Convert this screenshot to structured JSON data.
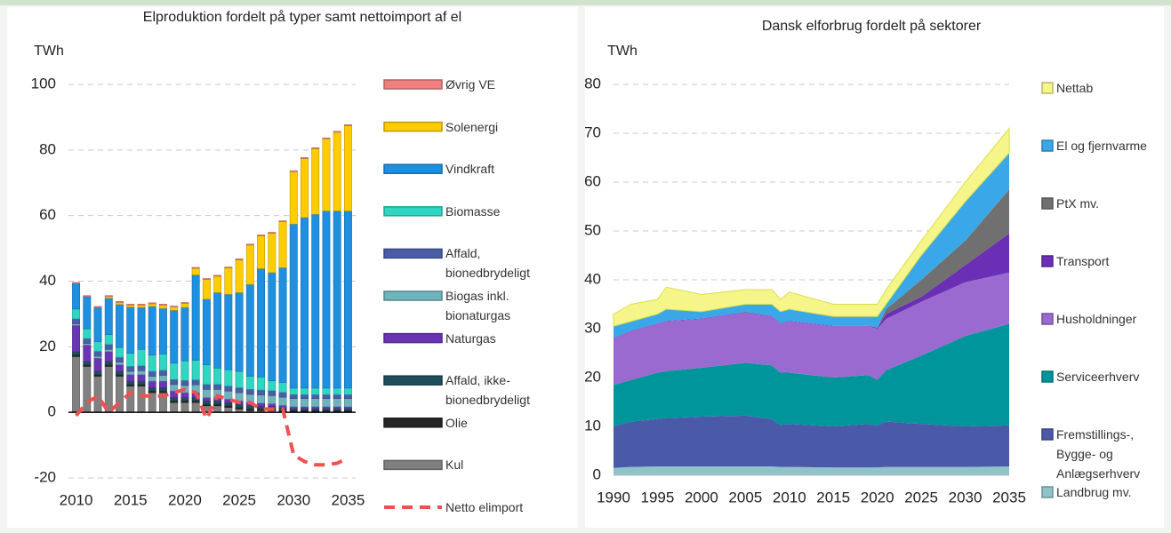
{
  "chart_data": [
    {
      "type": "bar",
      "title": "Elproduktion fordelt på typer samt nettoimport af el",
      "y_label": "TWh",
      "x": [
        2010,
        2011,
        2012,
        2013,
        2014,
        2015,
        2016,
        2017,
        2018,
        2019,
        2020,
        2021,
        2022,
        2023,
        2024,
        2025,
        2026,
        2027,
        2028,
        2029,
        2030,
        2031,
        2032,
        2033,
        2034,
        2035
      ],
      "xlim": [
        2009.3,
        2035.7
      ],
      "xticks": [
        2010,
        2015,
        2020,
        2025,
        2030,
        2035
      ],
      "ylim": [
        -20,
        100
      ],
      "yticks": [
        -20,
        0,
        20,
        40,
        60,
        80,
        100
      ],
      "grid": true,
      "series": [
        {
          "name": "Kul",
          "color": "#808080",
          "values": [
            17,
            14,
            11,
            14,
            11,
            8,
            8,
            6,
            6,
            3,
            3,
            3,
            2,
            2,
            1.5,
            1,
            0.5,
            0.5,
            0.5,
            0,
            0,
            0,
            0,
            0,
            0,
            0
          ]
        },
        {
          "name": "Olie",
          "color": "#262626",
          "values": [
            0.5,
            0.5,
            0.5,
            0.5,
            0.5,
            0.5,
            0.5,
            0.5,
            0.5,
            0.5,
            0.5,
            0.5,
            0.5,
            0.5,
            0.5,
            0.5,
            0.5,
            0.5,
            0.5,
            0.5,
            0.5,
            0.5,
            0.5,
            0.5,
            0.5,
            0.5
          ]
        },
        {
          "name": "Affald, ikke-bionedbrydeligt",
          "color": "#1f4e5a",
          "values": [
            1,
            1,
            1,
            1,
            1,
            1,
            1,
            1,
            1,
            1,
            1,
            1,
            1,
            1,
            1,
            1,
            1,
            0.8,
            0.8,
            0.8,
            0.6,
            0.6,
            0.6,
            0.6,
            0.6,
            0.6
          ]
        },
        {
          "name": "Naturgas",
          "color": "#6a35b5",
          "values": [
            8,
            5,
            4,
            3,
            2,
            2,
            2,
            2,
            2,
            2,
            1.5,
            1.5,
            1,
            1,
            1,
            1,
            1,
            1,
            0.8,
            0.8,
            0.6,
            0.6,
            0.6,
            0.6,
            0.6,
            0.6
          ]
        },
        {
          "name": "Biogas inkl. bionaturgas",
          "color": "#6fb3bd",
          "values": [
            0.5,
            0.5,
            0.6,
            0.7,
            0.8,
            1,
            1.2,
            1.5,
            1.8,
            2,
            2.2,
            2.4,
            2.5,
            2.5,
            2.5,
            2.5,
            2.5,
            2.5,
            2.5,
            2.5,
            2.5,
            2.5,
            2.5,
            2.5,
            2.5,
            2.5
          ]
        },
        {
          "name": "Affald, bionedbrydeligt",
          "color": "#4a5ea8",
          "values": [
            1.5,
            1.5,
            1.5,
            1.5,
            1.5,
            1.5,
            1.5,
            1.5,
            1.5,
            1.5,
            1.5,
            1.5,
            1.5,
            1.5,
            1.5,
            1.5,
            1.5,
            1.5,
            1.5,
            1.5,
            1.2,
            1.2,
            1.2,
            1.2,
            1.2,
            1.2
          ]
        },
        {
          "name": "Biomasse",
          "color": "#2fd6c2",
          "values": [
            3,
            3,
            3,
            3,
            3,
            4,
            5,
            5,
            5,
            5,
            6,
            6,
            6,
            5,
            5,
            5,
            4,
            4,
            3,
            3,
            2,
            2,
            2,
            2,
            2,
            2
          ]
        },
        {
          "name": "Vindkraft",
          "color": "#1f8fe0",
          "values": [
            7.8,
            9.8,
            10.3,
            11.1,
            13.1,
            14.1,
            12.8,
            14.8,
            13.9,
            16.1,
            16.3,
            26,
            20,
            23,
            23,
            24,
            28,
            33,
            33,
            35,
            50,
            52,
            53,
            54,
            54,
            54
          ]
        },
        {
          "name": "Solenergi",
          "color": "#ffcc00",
          "values": [
            0,
            0,
            0.1,
            0.5,
            0.6,
            0.6,
            0.7,
            0.8,
            1,
            1,
            1.2,
            2,
            6,
            5,
            8,
            10,
            12,
            10,
            12,
            14,
            16,
            18,
            20,
            22,
            24,
            26
          ]
        },
        {
          "name": "Øvrig VE",
          "color": "#f08080",
          "values": [
            0.3,
            0.3,
            0.3,
            0.3,
            0.3,
            0.3,
            0.3,
            0.3,
            0.3,
            0.3,
            0.3,
            0.3,
            0.3,
            0.3,
            0.3,
            0.3,
            0.3,
            0.3,
            0.3,
            0.3,
            0.3,
            0.3,
            0.3,
            0.3,
            0.3,
            0.3
          ]
        },
        {
          "name": "Netto elimport",
          "color": "#f05050",
          "mark": "line",
          "dashed": true,
          "values": [
            -1,
            3,
            5,
            0,
            3,
            6,
            5,
            5,
            5,
            6,
            7,
            6,
            -2,
            5,
            4,
            3,
            3,
            1,
            1,
            1,
            -13,
            -15,
            -16,
            -16,
            -15.5,
            -14
          ]
        }
      ]
    },
    {
      "type": "area",
      "title": "Dansk elforbrug fordelt på sektorer",
      "y_label": "TWh",
      "x": [
        1990,
        1992,
        1995,
        1996,
        2000,
        2005,
        2008,
        2009,
        2010,
        2015,
        2019,
        2020,
        2021,
        2025,
        2030,
        2035
      ],
      "xlim": [
        1990,
        2035
      ],
      "xticks": [
        1990,
        1995,
        2000,
        2005,
        2010,
        2015,
        2020,
        2025,
        2030,
        2035
      ],
      "ylim": [
        0,
        80
      ],
      "yticks": [
        0,
        10,
        20,
        30,
        40,
        50,
        60,
        70,
        80
      ],
      "grid": true,
      "series": [
        {
          "name": "Landbrug mv.",
          "color": "#8fc3c8",
          "values": [
            1.5,
            1.7,
            1.8,
            1.8,
            1.8,
            1.8,
            1.8,
            1.7,
            1.7,
            1.6,
            1.6,
            1.6,
            1.7,
            1.7,
            1.7,
            1.8
          ]
        },
        {
          "name": "Fremstillings-, Bygge- og Anlægserhverv",
          "color": "#4a5aa8",
          "values": [
            8.5,
            9.3,
            9.7,
            9.9,
            10.2,
            10.4,
            9.7,
            8.6,
            8.8,
            8.4,
            8.9,
            8.6,
            9.3,
            8.8,
            8.3,
            8.4
          ]
        },
        {
          "name": "Serviceerhverv",
          "color": "#00959b",
          "values": [
            8.5,
            8.5,
            9.5,
            9.6,
            10,
            10.8,
            11,
            10.7,
            10.5,
            10,
            10,
            9.3,
            10.5,
            14,
            18.5,
            20.8
          ]
        },
        {
          "name": "Husholdninger",
          "color": "#9a6ad0",
          "values": [
            9.5,
            10,
            10,
            10.2,
            10,
            10.3,
            10,
            10,
            10.5,
            10.5,
            10,
            10.5,
            10.5,
            11,
            11,
            10.5
          ]
        },
        {
          "name": "Transport",
          "color": "#6a2fb5",
          "values": [
            0.1,
            0.1,
            0.1,
            0.1,
            0.1,
            0.1,
            0.1,
            0.1,
            0.1,
            0.1,
            0.1,
            0.2,
            1,
            1,
            3.5,
            8
          ]
        },
        {
          "name": "PtX mv.",
          "color": "#707070",
          "values": [
            0,
            0,
            0,
            0,
            0,
            0,
            0,
            0,
            0,
            0,
            0,
            0,
            1,
            3.5,
            5,
            9
          ]
        },
        {
          "name": "El og fjernvarme",
          "color": "#3aa8e8",
          "values": [
            2.4,
            1.9,
            1.9,
            2.4,
            1.4,
            1.6,
            2.4,
            2.4,
            2.4,
            1.9,
            1.9,
            2.3,
            1,
            5,
            8,
            7.5
          ]
        },
        {
          "name": "Nettab",
          "color": "#f5f58a",
          "values": [
            2.5,
            3.5,
            3,
            4.5,
            3.5,
            3,
            3,
            2.5,
            3.5,
            2.5,
            2.5,
            2.5,
            3,
            3,
            4,
            5
          ]
        }
      ]
    }
  ]
}
